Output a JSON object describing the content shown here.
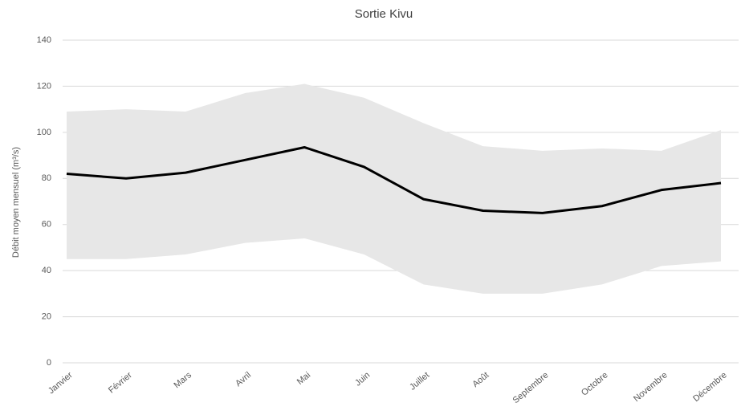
{
  "chart_data": {
    "type": "line",
    "title": "Sortie Kivu",
    "y_label": "Débit moyen mensuel (m³/s)",
    "categories": [
      "Janvier",
      "Février",
      "Mars",
      "Avril",
      "Mai",
      "Juin",
      "Juillet",
      "Août",
      "Septembre",
      "Octobre",
      "Novembre",
      "Décembre"
    ],
    "series": [
      {
        "color": "#000000",
        "values": [
          82,
          80,
          82.5,
          88,
          93.5,
          85,
          71,
          66,
          65,
          68,
          75,
          78
        ]
      }
    ],
    "band": {
      "color": "#e7e7e7",
      "upper": [
        109,
        110,
        109,
        117,
        121,
        115,
        104,
        94,
        92,
        93,
        92,
        101
      ],
      "lower": [
        45,
        45,
        47,
        52,
        54,
        47,
        34,
        30,
        30,
        34,
        42,
        44
      ]
    },
    "ylim": [
      0,
      140
    ],
    "yticks": [
      0,
      20,
      40,
      60,
      80,
      100,
      120,
      140
    ],
    "grid": true
  }
}
